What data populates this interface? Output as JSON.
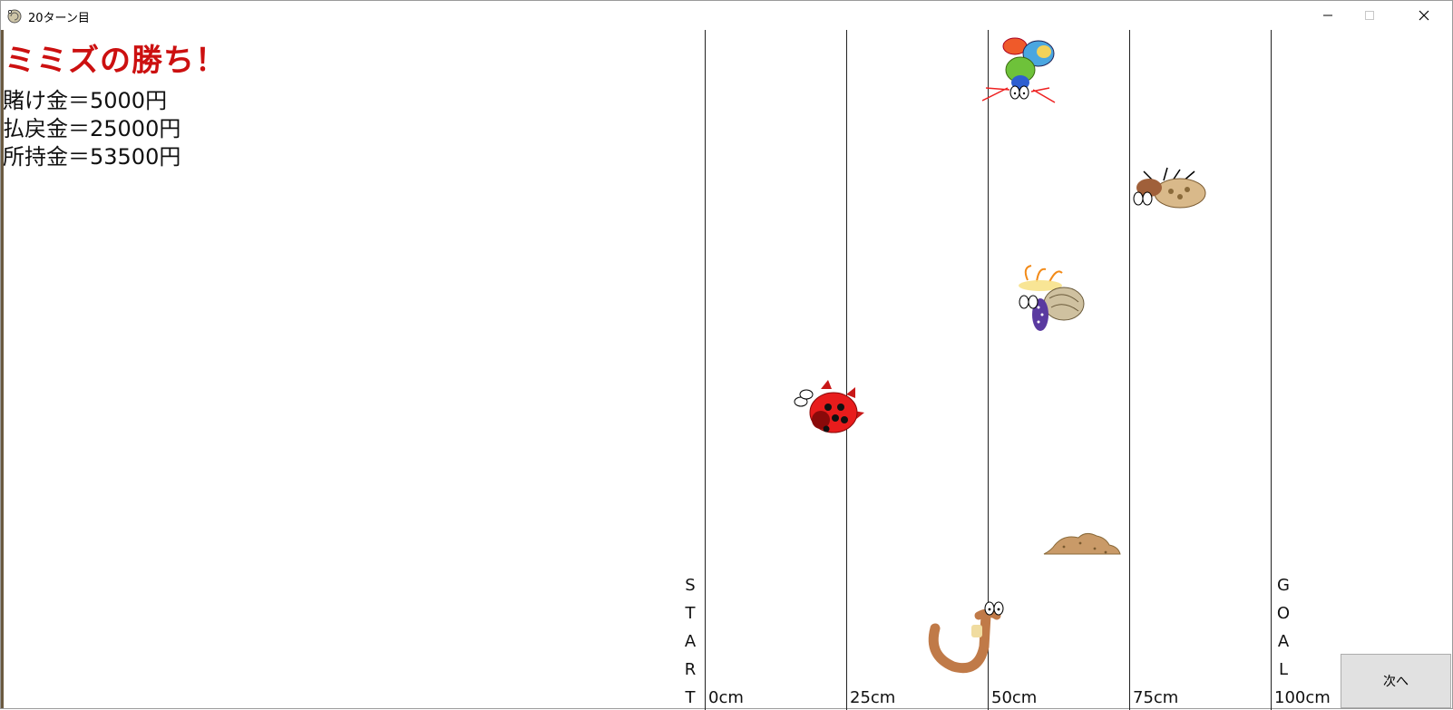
{
  "window": {
    "title": "20ターン目",
    "icon": "app-snail-icon"
  },
  "result": {
    "headline": "ミミズの勝ち！",
    "bet": "賭け金＝5000円",
    "payout": "払戻金＝25000円",
    "balance": "所持金＝53500円"
  },
  "track": {
    "start_letters": [
      "S",
      "T",
      "A",
      "R",
      "T"
    ],
    "goal_letters": [
      "G",
      "O",
      "A",
      "L"
    ],
    "markers": [
      "0cm",
      "25cm",
      "50cm",
      "75cm",
      "100cm"
    ]
  },
  "racers": [
    {
      "icon": "mantis-shrimp-icon"
    },
    {
      "icon": "beetle-icon"
    },
    {
      "icon": "sea-slug-icon"
    },
    {
      "icon": "ladybug-icon"
    },
    {
      "icon": "dirt-mound-icon"
    },
    {
      "icon": "earthworm-icon"
    }
  ],
  "buttons": {
    "next": "次へ"
  }
}
